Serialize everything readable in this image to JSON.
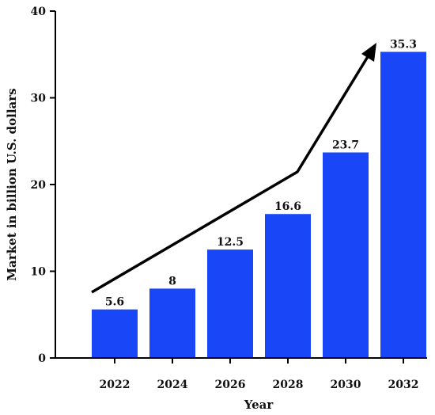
{
  "chart_data": {
    "type": "bar",
    "categories": [
      "2022",
      "2024",
      "2026",
      "2028",
      "2030",
      "2032"
    ],
    "values": [
      5.6,
      8,
      12.5,
      16.6,
      23.7,
      35.3
    ],
    "value_labels": [
      "5.6",
      "8",
      "12.5",
      "16.6",
      "23.7",
      "35.3"
    ],
    "xlabel": "Year",
    "ylabel": "Market in billion U.S. dollars",
    "ylim": [
      0,
      40
    ],
    "yticks": [
      "0",
      "10",
      "20",
      "30",
      "40"
    ],
    "grid": false,
    "bar_color": "#1947f7",
    "trend_arrow": true
  }
}
